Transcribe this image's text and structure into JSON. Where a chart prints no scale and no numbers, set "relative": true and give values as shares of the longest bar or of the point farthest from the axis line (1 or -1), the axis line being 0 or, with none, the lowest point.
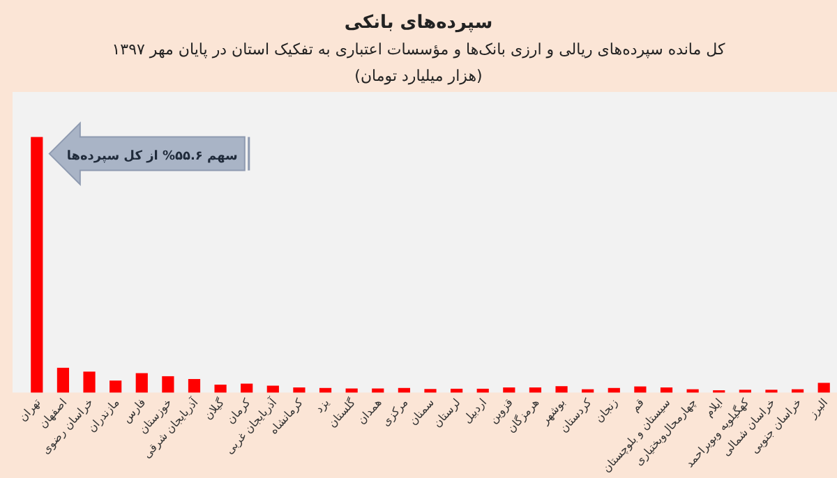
{
  "chart_data": {
    "type": "bar",
    "title": "سپرده‌های بانکی",
    "subtitle": "کل مانده سپرده‌های ریالی و ارزی بانک‌ها و مؤسسات اعتباری  به تفکیک استان در پایان مهر ۱۳۹۷",
    "annotations": [
      "(هزار میلیارد تومان)",
      {
        "text": "سهم ۵۵.۶% از کل سپرده‌ها",
        "x": "تهران",
        "y": 1
      }
    ],
    "categories": [
      "تهران",
      "اصفهان",
      "خراسان رضوی",
      "مازندران",
      "فارس",
      "خوزستان",
      "آذربایجان شرقی",
      "گیلان",
      "کرمان",
      "آذربایجان غربی",
      "کرمانشاه",
      "یزد",
      "گلستان",
      "همدان",
      "مرکزی",
      "سمنان",
      "لرستان",
      "اردبیل",
      "قزوین",
      "هرمزگان",
      "بوشهر",
      "کردستان",
      "زنجان",
      "قم",
      "سیستان و بلوچستان",
      "چهارمحال‌وبختیاری",
      "ایلام",
      "کهگیلویه وبویراحمد",
      "خراسان شمالی",
      "خراسان جنوبی",
      "البرز"
    ],
    "values": [
      1,
      0.097,
      0.082,
      0.047,
      0.076,
      0.064,
      0.053,
      0.031,
      0.035,
      0.027,
      0.02,
      0.018,
      0.016,
      0.016,
      0.018,
      0.014,
      0.015,
      0.015,
      0.02,
      0.02,
      0.025,
      0.013,
      0.018,
      0.024,
      0.02,
      0.013,
      0.009,
      0.011,
      0.011,
      0.013,
      0.038
    ],
    "color": "#ff0000",
    "relative": true
  }
}
